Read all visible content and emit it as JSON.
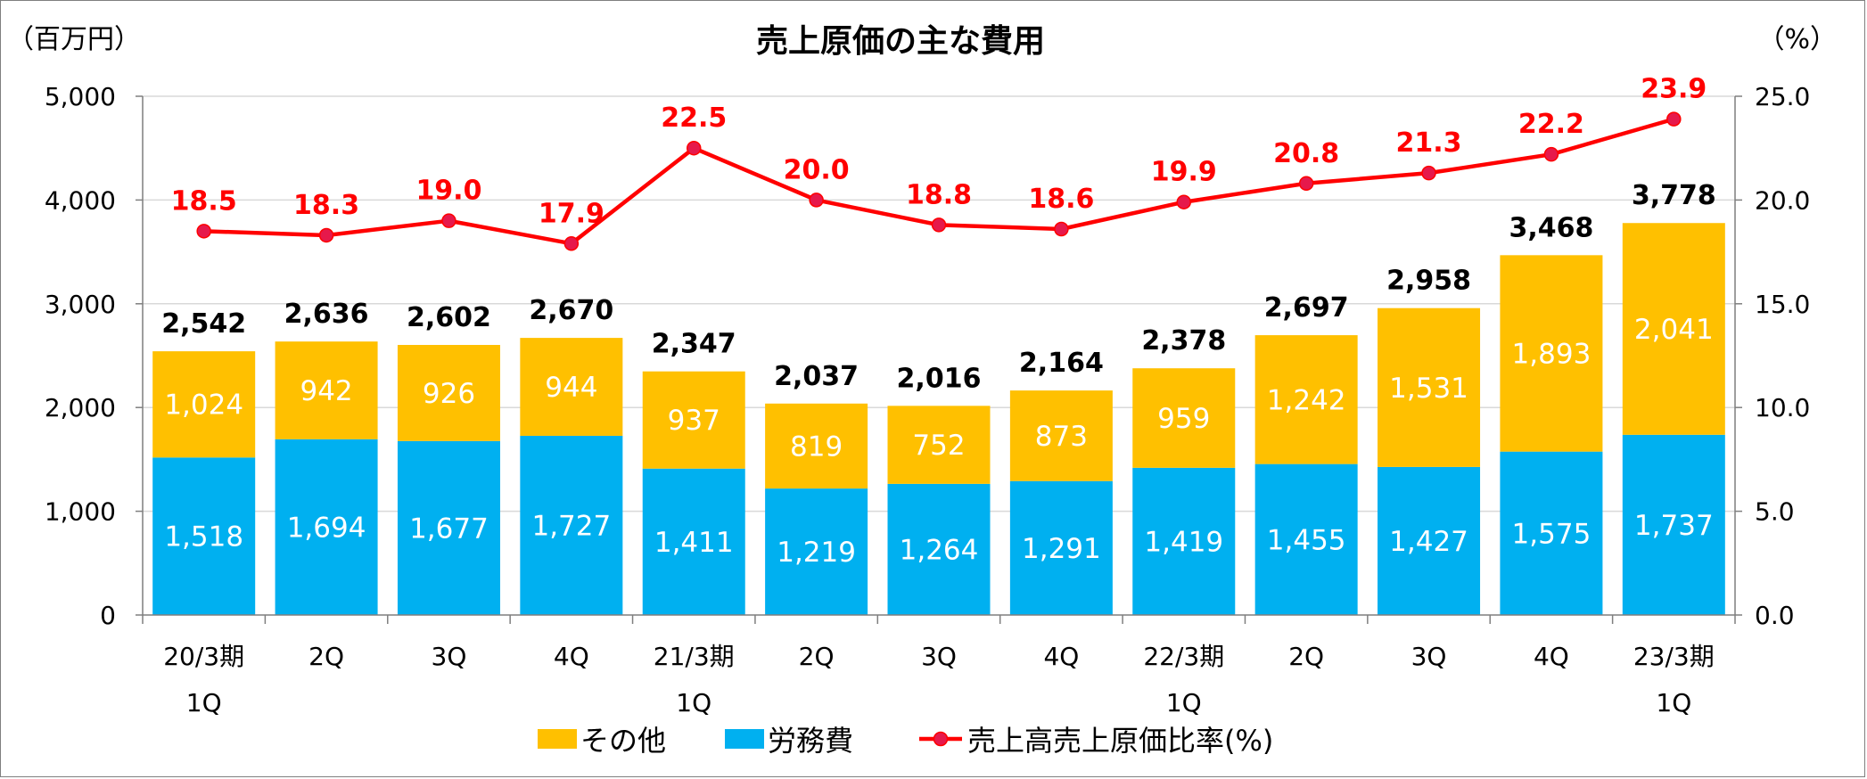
{
  "chart_data": {
    "type": "bar",
    "stacked": true,
    "title": "売上原価の主な費用",
    "ylabel_left": "（百万円）",
    "ylabel_right": "（%）",
    "ylim_left": [
      0,
      5000
    ],
    "ylim_right": [
      0,
      25
    ],
    "yticks_left": [
      "0",
      "1,000",
      "2,000",
      "3,000",
      "4,000",
      "5,000"
    ],
    "yticks_right": [
      "0.0",
      "5.0",
      "10.0",
      "15.0",
      "20.0",
      "25.0"
    ],
    "grid": true,
    "legend_position": "bottom",
    "categories": [
      [
        "20/3期",
        "1Q"
      ],
      [
        "2Q"
      ],
      [
        "3Q"
      ],
      [
        "4Q"
      ],
      [
        "21/3期",
        "1Q"
      ],
      [
        "2Q"
      ],
      [
        "3Q"
      ],
      [
        "4Q"
      ],
      [
        "22/3期",
        "1Q"
      ],
      [
        "2Q"
      ],
      [
        "3Q"
      ],
      [
        "4Q"
      ],
      [
        "23/3期",
        "1Q"
      ]
    ],
    "series": [
      {
        "name": "労務費",
        "color": "#00b0f0",
        "values": [
          1518,
          1694,
          1677,
          1727,
          1411,
          1219,
          1264,
          1291,
          1419,
          1455,
          1427,
          1575,
          1737
        ],
        "labels": [
          "1,518",
          "1,694",
          "1,677",
          "1,727",
          "1,411",
          "1,219",
          "1,264",
          "1,291",
          "1,419",
          "1,455",
          "1,427",
          "1,575",
          "1,737"
        ]
      },
      {
        "name": "その他",
        "color": "#ffc000",
        "values": [
          1024,
          942,
          926,
          944,
          937,
          819,
          752,
          873,
          959,
          1242,
          1531,
          1893,
          2041
        ],
        "labels": [
          "1,024",
          "942",
          "926",
          "944",
          "937",
          "819",
          "752",
          "873",
          "959",
          "1,242",
          "1,531",
          "1,893",
          "2,041"
        ]
      }
    ],
    "totals": [
      2542,
      2636,
      2602,
      2670,
      2347,
      2037,
      2016,
      2164,
      2378,
      2697,
      2958,
      3468,
      3778
    ],
    "total_labels": [
      "2,542",
      "2,636",
      "2,602",
      "2,670",
      "2,347",
      "2,037",
      "2,016",
      "2,164",
      "2,378",
      "2,697",
      "2,958",
      "3,468",
      "3,778"
    ],
    "line_series": {
      "name": "売上高売上原価比率(%)",
      "axis": "right",
      "color": "#ff0000",
      "marker_color": "#e6194b",
      "values": [
        18.5,
        18.3,
        19.0,
        17.9,
        22.5,
        20.0,
        18.8,
        18.6,
        19.9,
        20.8,
        21.3,
        22.2,
        23.9
      ],
      "labels": [
        "18.5",
        "18.3",
        "19.0",
        "17.9",
        "22.5",
        "20.0",
        "18.8",
        "18.6",
        "19.9",
        "20.8",
        "21.3",
        "22.2",
        "23.9"
      ]
    },
    "legend": [
      {
        "name": "その他",
        "type": "box",
        "color": "#ffc000"
      },
      {
        "name": "労務費",
        "type": "box",
        "color": "#00b0f0"
      },
      {
        "name": "売上高売上原価比率(%)",
        "type": "line",
        "color": "#ff0000"
      }
    ]
  }
}
